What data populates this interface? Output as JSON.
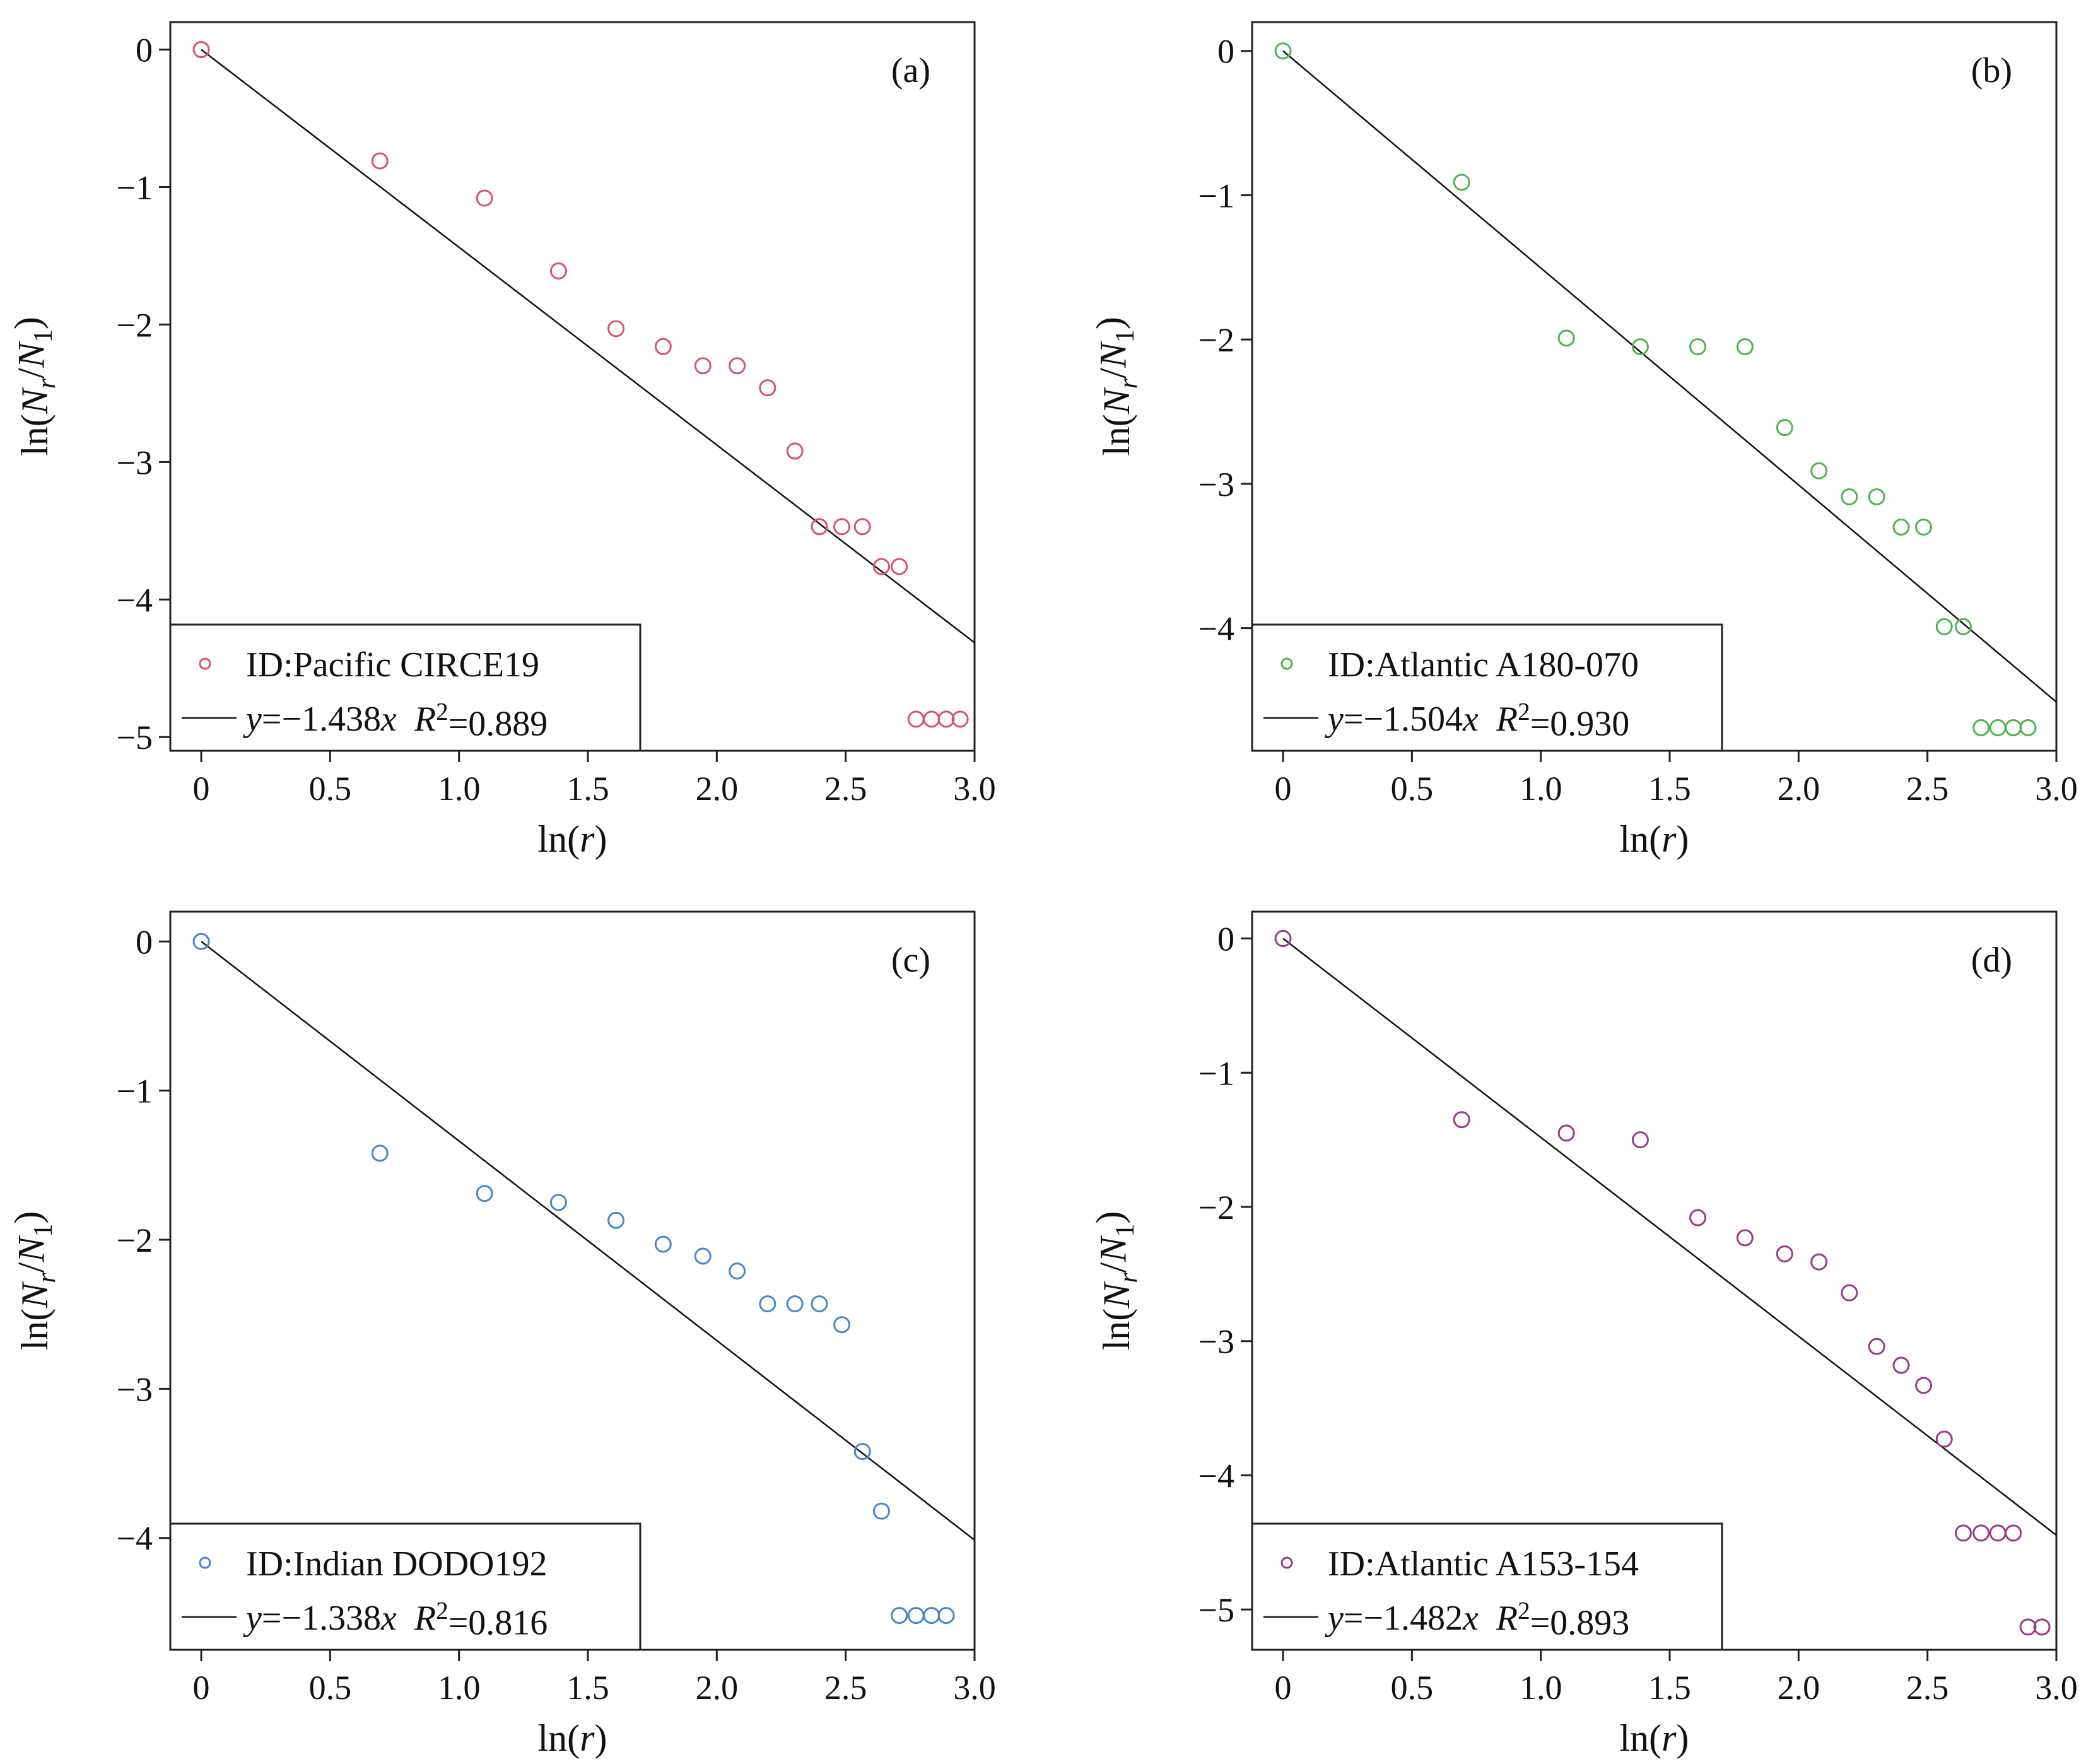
{
  "chart_data": [
    {
      "type": "scatter",
      "panel_label": "(a)",
      "xlabel": "ln(r)",
      "ylabel": "ln(Nr/N1)",
      "xlim": [
        -0.12,
        3.0
      ],
      "ylim": [
        -5.1,
        0.2
      ],
      "xticks": [
        0,
        0.5,
        1.0,
        1.5,
        2.0,
        2.5,
        3.0
      ],
      "xtick_labels": [
        "0",
        "0.5",
        "1.0",
        "1.5",
        "2.0",
        "2.5",
        "3.0"
      ],
      "yticks": [
        0,
        -1,
        -2,
        -3,
        -4,
        -5
      ],
      "ytick_labels": [
        "0",
        "−1",
        "−2",
        "−3",
        "−4",
        "−5"
      ],
      "point_color": "#d9546a",
      "legend": {
        "position": "bottom-left",
        "series_label": "ID:Pacific CIRCE19",
        "fit_label": "y=−1.438x  R²=0.889"
      },
      "fit": {
        "slope": -1.438,
        "r2": 0.889
      },
      "points": {
        "x": [
          0,
          0.693,
          1.099,
          1.386,
          1.609,
          1.792,
          1.946,
          2.079,
          2.197,
          2.303,
          2.398,
          2.485,
          2.565,
          2.639,
          2.708,
          2.773,
          2.833,
          2.89,
          2.944
        ],
        "y": [
          0,
          -0.81,
          -1.08,
          -1.61,
          -2.03,
          -2.16,
          -2.3,
          -2.3,
          -2.46,
          -2.92,
          -3.47,
          -3.47,
          -3.47,
          -3.76,
          -3.76,
          -4.87,
          -4.87,
          -4.87,
          -4.87
        ]
      }
    },
    {
      "type": "scatter",
      "panel_label": "(b)",
      "xlabel": "ln(r)",
      "ylabel": "ln(Nr/N1)",
      "xlim": [
        -0.12,
        3.0
      ],
      "ylim": [
        -4.85,
        0.2
      ],
      "xticks": [
        0,
        0.5,
        1.0,
        1.5,
        2.0,
        2.5,
        3.0
      ],
      "xtick_labels": [
        "0",
        "0.5",
        "1.0",
        "1.5",
        "2.0",
        "2.5",
        "3.0"
      ],
      "yticks": [
        0,
        -1,
        -2,
        -3,
        -4
      ],
      "ytick_labels": [
        "0",
        "−1",
        "−2",
        "−3",
        "−4"
      ],
      "point_color": "#4fb34f",
      "legend": {
        "position": "bottom-left",
        "series_label": "ID:Atlantic A180-070",
        "fit_label": "y=−1.504x  R²=0.930"
      },
      "fit": {
        "slope": -1.504,
        "r2": 0.93
      },
      "points": {
        "x": [
          0,
          0.693,
          1.099,
          1.386,
          1.609,
          1.792,
          1.946,
          2.079,
          2.197,
          2.303,
          2.398,
          2.485,
          2.565,
          2.639,
          2.708,
          2.773,
          2.833,
          2.89
        ],
        "y": [
          0,
          -0.91,
          -1.99,
          -2.05,
          -2.05,
          -2.05,
          -2.61,
          -2.91,
          -3.09,
          -3.09,
          -3.3,
          -3.3,
          -3.99,
          -3.99,
          -4.69,
          -4.69,
          -4.69,
          -4.69
        ]
      }
    },
    {
      "type": "scatter",
      "panel_label": "(c)",
      "xlabel": "ln(r)",
      "ylabel": "ln(Nr/N1)",
      "xlim": [
        -0.12,
        3.0
      ],
      "ylim": [
        -4.75,
        0.2
      ],
      "xticks": [
        0,
        0.5,
        1.0,
        1.5,
        2.0,
        2.5,
        3.0
      ],
      "xtick_labels": [
        "0",
        "0.5",
        "1.0",
        "1.5",
        "2.0",
        "2.5",
        "3.0"
      ],
      "yticks": [
        0,
        -1,
        -2,
        -3,
        -4
      ],
      "ytick_labels": [
        "0",
        "−1",
        "−2",
        "−3",
        "−4"
      ],
      "point_color": "#4a86c8",
      "legend": {
        "position": "bottom-left",
        "series_label": "ID:Indian DODO192",
        "fit_label": "y=−1.338x  R²=0.816"
      },
      "fit": {
        "slope": -1.338,
        "r2": 0.816
      },
      "points": {
        "x": [
          0,
          0.693,
          1.099,
          1.386,
          1.609,
          1.792,
          1.946,
          2.079,
          2.197,
          2.303,
          2.398,
          2.485,
          2.565,
          2.639,
          2.708,
          2.773,
          2.833,
          2.89
        ],
        "y": [
          0,
          -1.42,
          -1.69,
          -1.75,
          -1.87,
          -2.03,
          -2.11,
          -2.21,
          -2.43,
          -2.43,
          -2.43,
          -2.57,
          -3.42,
          -3.82,
          -4.52,
          -4.52,
          -4.52,
          -4.52
        ]
      }
    },
    {
      "type": "scatter",
      "panel_label": "(d)",
      "xlabel": "ln(r)",
      "ylabel": "ln(Nr/N1)",
      "xlim": [
        -0.12,
        3.0
      ],
      "ylim": [
        -5.3,
        0.2
      ],
      "xticks": [
        0,
        0.5,
        1.0,
        1.5,
        2.0,
        2.5,
        3.0
      ],
      "xtick_labels": [
        "0",
        "0.5",
        "1.0",
        "1.5",
        "2.0",
        "2.5",
        "3.0"
      ],
      "yticks": [
        0,
        -1,
        -2,
        -3,
        -4,
        -5
      ],
      "ytick_labels": [
        "0",
        "−1",
        "−2",
        "−3",
        "−4",
        "−5"
      ],
      "point_color": "#9b3a85",
      "legend": {
        "position": "bottom-left",
        "series_label": "ID:Atlantic A153-154",
        "fit_label": "y=−1.482x  R²=0.893"
      },
      "fit": {
        "slope": -1.482,
        "r2": 0.893
      },
      "points": {
        "x": [
          0,
          0.693,
          1.099,
          1.386,
          1.609,
          1.792,
          1.946,
          2.079,
          2.197,
          2.303,
          2.398,
          2.485,
          2.565,
          2.639,
          2.708,
          2.773,
          2.833,
          2.89,
          2.944
        ],
        "y": [
          0,
          -1.35,
          -1.45,
          -1.5,
          -2.08,
          -2.23,
          -2.35,
          -2.41,
          -2.64,
          -3.04,
          -3.18,
          -3.33,
          -3.73,
          -4.43,
          -4.43,
          -4.43,
          -4.43,
          -5.13,
          -5.13
        ]
      }
    }
  ]
}
